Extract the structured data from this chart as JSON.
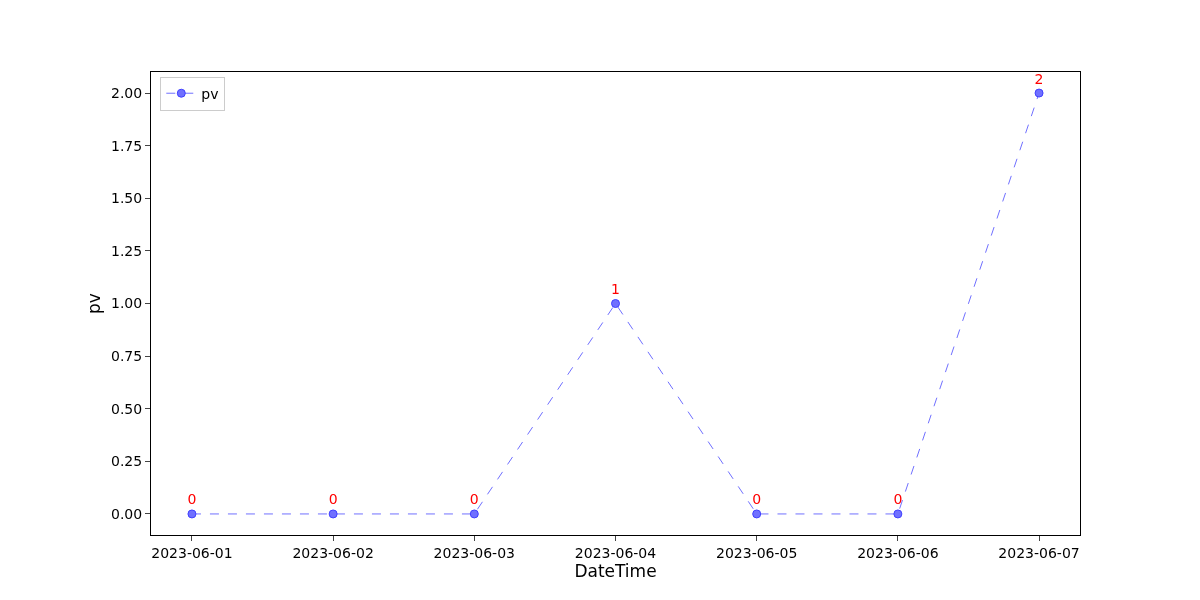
{
  "chart_data": {
    "type": "line",
    "xlabel": "DateTime",
    "ylabel": "pv",
    "categories": [
      "2023-06-01",
      "2023-06-02",
      "2023-06-03",
      "2023-06-04",
      "2023-06-05",
      "2023-06-06",
      "2023-06-07"
    ],
    "series": [
      {
        "name": "pv",
        "color": "#7070ff",
        "values": [
          0,
          0,
          0,
          1,
          0,
          0,
          2
        ]
      }
    ],
    "ylim": [
      -0.1,
      2.1
    ],
    "yticks": [
      {
        "value": 0,
        "label": "0.00"
      },
      {
        "value": 0.25,
        "label": "0.25"
      },
      {
        "value": 0.5,
        "label": "0.50"
      },
      {
        "value": 0.75,
        "label": "0.75"
      },
      {
        "value": 1,
        "label": "1.00"
      },
      {
        "value": 1.25,
        "label": "1.25"
      },
      {
        "value": 1.5,
        "label": "1.50"
      },
      {
        "value": 1.75,
        "label": "1.75"
      },
      {
        "value": 2,
        "label": "2.00"
      }
    ],
    "marker": "circle",
    "line_style": "dashed",
    "data_labels": true,
    "legend": "top left"
  }
}
